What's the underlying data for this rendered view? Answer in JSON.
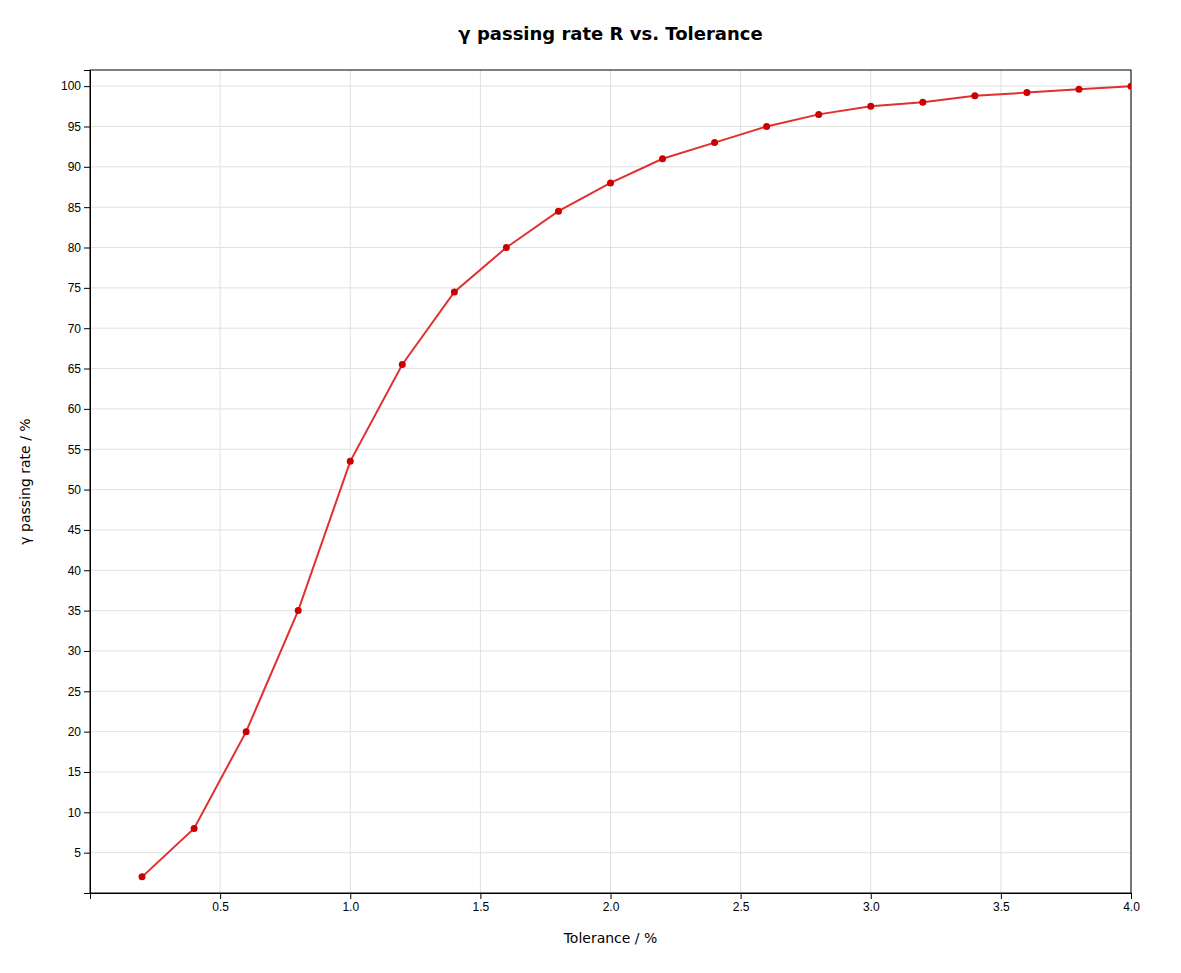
{
  "chart_data": {
    "type": "line",
    "title": "γ passing rate R vs. Tolerance",
    "x_label": "Tolerance / %",
    "y_label": "γ passing rate / %",
    "x": [
      0.2,
      0.4,
      0.6,
      0.8,
      1.0,
      1.2,
      1.4,
      1.6,
      1.8,
      2.0,
      2.2,
      2.4,
      2.6,
      2.8,
      3.0,
      3.2,
      3.4,
      3.6,
      3.8,
      4.0
    ],
    "values": [
      2.0,
      8.0,
      20.0,
      35.0,
      53.5,
      65.5,
      74.5,
      80.0,
      84.5,
      88.0,
      91.0,
      93.0,
      95.0,
      96.5,
      97.5,
      98.0,
      98.8,
      99.2,
      99.6,
      100.0
    ],
    "color": "#e03030",
    "colors": [
      "#cc0000",
      "#cc0000",
      "#cc0000",
      "#cc0000",
      "#cc0000",
      "#cc0000",
      "#cc0000",
      "#cc0000",
      "#cc0000",
      "#cc0000",
      "#cc0000",
      "#cc0000",
      "#cc0000",
      "#cc0000",
      "#cc0000",
      "#cc0000",
      "#cc0000",
      "#cc0000",
      "#cc0000",
      "#cc0000"
    ],
    "marker": "circle",
    "xlim": [
      0.0,
      4.0
    ],
    "ylim": [
      0,
      102
    ],
    "xticks": [
      0.5,
      {
        "value": 1.0,
        "label": "1.0"
      },
      1.5,
      {
        "value": 2.0,
        "label": "2.0"
      },
      2.5,
      {
        "value": 3.0,
        "label": "3.0"
      },
      3.5,
      {
        "value": 4.0,
        "label": "4.0"
      }
    ],
    "yticks": [
      5,
      10,
      15,
      20,
      25,
      30,
      35,
      40,
      45,
      50,
      55,
      60,
      65,
      70,
      75,
      80,
      85,
      90,
      95,
      100
    ],
    "grid": true
  }
}
